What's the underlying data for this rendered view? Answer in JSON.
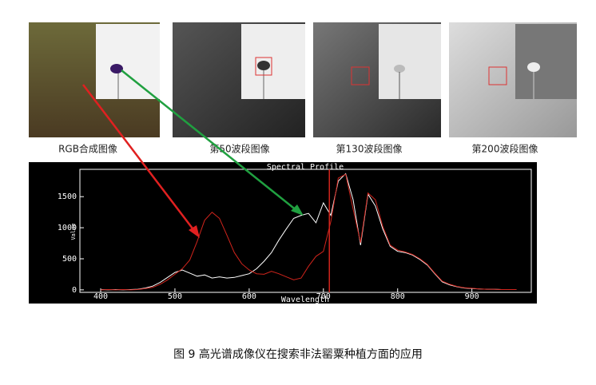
{
  "panels": [
    {
      "caption": "RGB合成图像"
    },
    {
      "caption": "第50波段图像"
    },
    {
      "caption": "第130波段图像"
    },
    {
      "caption": "第200波段图像"
    }
  ],
  "chart_data": {
    "type": "line",
    "title": "Spectral Profile",
    "xlabel": "Wavelength",
    "ylabel": "Value",
    "x": [
      400,
      410,
      420,
      430,
      440,
      450,
      460,
      470,
      480,
      490,
      500,
      510,
      520,
      530,
      540,
      550,
      560,
      570,
      580,
      590,
      600,
      610,
      620,
      630,
      640,
      650,
      660,
      670,
      680,
      690,
      700,
      710,
      720,
      730,
      740,
      750,
      760,
      770,
      780,
      790,
      800,
      810,
      820,
      830,
      840,
      850,
      860,
      870,
      880,
      890,
      900,
      910,
      920,
      930,
      940,
      950,
      960
    ],
    "series": [
      {
        "color": "#ffffff",
        "values": [
          5,
          0,
          5,
          0,
          5,
          10,
          30,
          60,
          120,
          200,
          280,
          320,
          270,
          220,
          240,
          190,
          210,
          190,
          200,
          230,
          260,
          340,
          460,
          600,
          800,
          980,
          1150,
          1200,
          1230,
          1080,
          1400,
          1200,
          1750,
          1870,
          1450,
          720,
          1540,
          1350,
          980,
          700,
          620,
          600,
          560,
          490,
          400,
          260,
          130,
          80,
          50,
          30,
          20,
          15,
          10,
          10,
          5,
          5,
          5
        ]
      },
      {
        "color": "#d0241c",
        "values": [
          0,
          5,
          0,
          5,
          0,
          5,
          20,
          40,
          90,
          160,
          250,
          340,
          480,
          780,
          1120,
          1250,
          1150,
          880,
          600,
          420,
          320,
          260,
          250,
          300,
          260,
          210,
          160,
          190,
          380,
          540,
          620,
          1100,
          1800,
          1860,
          1300,
          760,
          1560,
          1450,
          1020,
          720,
          640,
          610,
          570,
          500,
          410,
          270,
          140,
          90,
          55,
          35,
          25,
          15,
          10,
          10,
          5,
          5,
          5
        ]
      }
    ],
    "cursor": 708,
    "xlim": [
      372,
      980
    ],
    "ylim": [
      -40,
      1940
    ],
    "xticks": [
      400,
      500,
      600,
      700,
      800,
      900
    ],
    "yticks": [
      0,
      500,
      1000,
      1500
    ]
  },
  "caption": "图 9 高光谱成像仪在搜索非法罂粟种植方面的应用"
}
